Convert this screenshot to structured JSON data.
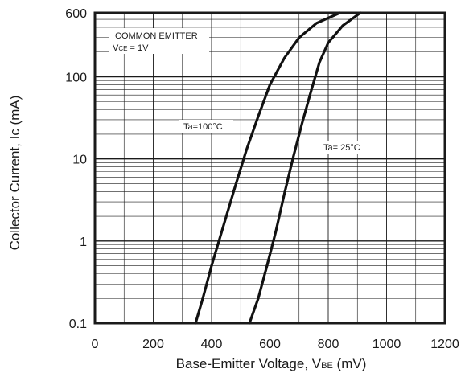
{
  "chart_data": {
    "type": "line",
    "xlabel_main": "Base-Emitter Voltage, V",
    "xlabel_sub": "BE",
    "xlabel_unit": " (mV)",
    "ylabel": "Collector Current, Ic (mA)",
    "xlim": [
      0,
      1200
    ],
    "ylim": [
      0.1,
      600
    ],
    "y_scale": "log",
    "grid": true,
    "x_ticks": [
      0,
      200,
      400,
      600,
      800,
      1000,
      1200
    ],
    "x_tick_labels": [
      "0",
      "200",
      "400",
      "600",
      "800",
      "1000",
      "1200"
    ],
    "y_ticks": [
      0.1,
      1,
      10,
      100,
      600
    ],
    "y_tick_labels": [
      "0.1",
      "1",
      "10",
      "100",
      "600"
    ],
    "annotations": {
      "common_emitter": "COMMON EMITTER",
      "vce_main": "V",
      "vce_sub": "CE",
      "vce_value": " = 1V"
    },
    "series": [
      {
        "name": "Ta=100°C",
        "x": [
          345,
          370,
          400,
          440,
          480,
          520,
          560,
          600,
          650,
          700,
          760,
          840
        ],
        "y": [
          0.1,
          0.2,
          0.5,
          1.5,
          4.5,
          13,
          33,
          80,
          170,
          300,
          450,
          600
        ]
      },
      {
        "name": "Ta= 25°C",
        "x": [
          530,
          560,
          590,
          620,
          650,
          680,
          710,
          740,
          770,
          800,
          850,
          910
        ],
        "y": [
          0.1,
          0.2,
          0.5,
          1.3,
          3.8,
          10.5,
          27,
          65,
          150,
          260,
          420,
          600
        ]
      }
    ]
  }
}
